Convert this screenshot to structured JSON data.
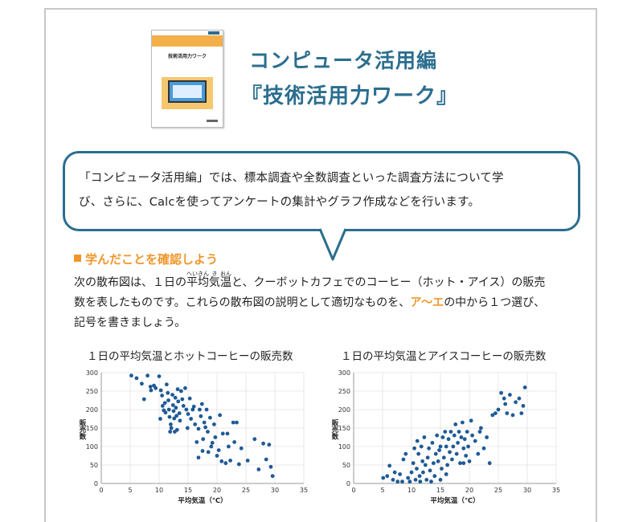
{
  "header": {
    "book_cover_title": "技術活用力ワーク",
    "title_line1": "コンピュータ活用編",
    "title_line2": "『技術活用力ワーク』"
  },
  "bubble": {
    "line1": "「コンピュータ活用編」では、標本調査や全数調査といった調査方法について学",
    "line2": "び、さらに、Calcを使ってアンケートの集計やグラフ作成などを行います。"
  },
  "section": {
    "label": "学んだことを確認しよう"
  },
  "question": {
    "p1a": "次の散布図は、１日の",
    "ruby_word": [
      {
        "base": "平",
        "rt": "へい"
      },
      {
        "base": "均",
        "rt": "きん"
      },
      {
        "base": "気",
        "rt": "き"
      },
      {
        "base": "温",
        "rt": "おん"
      }
    ],
    "p1b": "と、クーボットカフェでのコーヒー（ホット・アイス）の販売",
    "p2a": "数を表したものです。これらの散布図の説明として適切なものを、",
    "choices": "ア～エ",
    "p2b": "の中から１つ選び、",
    "p3": "記号を書きましょう。"
  },
  "colors": {
    "accent": "#2b6e8f",
    "orange": "#f0962a",
    "point": "#1f5a96"
  },
  "chart_data": [
    {
      "type": "scatter",
      "title": "１日の平均気温とホットコーヒーの販売数",
      "xlabel": "平均気温（℃）",
      "ylabel": "販売数",
      "xlim": [
        0,
        35
      ],
      "ylim": [
        0,
        300
      ],
      "xticks": [
        0,
        5,
        10,
        15,
        20,
        25,
        30,
        35
      ],
      "yticks": [
        0,
        50,
        100,
        150,
        200,
        250,
        300
      ],
      "grid": true,
      "points": [
        [
          5.2,
          292
        ],
        [
          6.1,
          285
        ],
        [
          7.0,
          270
        ],
        [
          7.4,
          228
        ],
        [
          8.0,
          292
        ],
        [
          8.5,
          262
        ],
        [
          8.6,
          252
        ],
        [
          9.1,
          265
        ],
        [
          9.4,
          258
        ],
        [
          10.0,
          290
        ],
        [
          10.3,
          252
        ],
        [
          10.5,
          238
        ],
        [
          10.6,
          210
        ],
        [
          10.8,
          198
        ],
        [
          11.0,
          218
        ],
        [
          11.1,
          192
        ],
        [
          11.3,
          268
        ],
        [
          11.5,
          245
        ],
        [
          11.6,
          225
        ],
        [
          11.7,
          200
        ],
        [
          11.8,
          180
        ],
        [
          12.0,
          160
        ],
        [
          12.1,
          150
        ],
        [
          12.3,
          240
        ],
        [
          12.4,
          212
        ],
        [
          12.5,
          196
        ],
        [
          12.6,
          176
        ],
        [
          12.7,
          140
        ],
        [
          12.8,
          232
        ],
        [
          12.9,
          205
        ],
        [
          13.0,
          183
        ],
        [
          13.2,
          255
        ],
        [
          13.3,
          222
        ],
        [
          13.5,
          190
        ],
        [
          13.6,
          170
        ],
        [
          13.8,
          250
        ],
        [
          14.0,
          228
        ],
        [
          14.2,
          210
        ],
        [
          14.5,
          258
        ],
        [
          14.7,
          200
        ],
        [
          15.0,
          188
        ],
        [
          15.3,
          230
        ],
        [
          15.5,
          175
        ],
        [
          15.8,
          200
        ],
        [
          16.0,
          208
        ],
        [
          16.2,
          160
        ],
        [
          16.5,
          112
        ],
        [
          16.8,
          148
        ],
        [
          17.0,
          200
        ],
        [
          17.2,
          182
        ],
        [
          17.4,
          215
        ],
        [
          17.6,
          120
        ],
        [
          17.8,
          165
        ],
        [
          18.0,
          152
        ],
        [
          18.2,
          200
        ],
        [
          18.4,
          140
        ],
        [
          18.5,
          85
        ],
        [
          18.8,
          178
        ],
        [
          19.0,
          100
        ],
        [
          19.2,
          110
        ],
        [
          19.5,
          160
        ],
        [
          19.7,
          125
        ],
        [
          20.0,
          75
        ],
        [
          20.3,
          90
        ],
        [
          20.5,
          185
        ],
        [
          21.0,
          135
        ],
        [
          21.5,
          55
        ],
        [
          21.8,
          135
        ],
        [
          22.0,
          100
        ],
        [
          22.3,
          62
        ],
        [
          22.8,
          165
        ],
        [
          23.0,
          112
        ],
        [
          23.4,
          165
        ],
        [
          23.8,
          52
        ],
        [
          24.2,
          95
        ],
        [
          25.3,
          62
        ],
        [
          26.5,
          120
        ],
        [
          27.2,
          38
        ],
        [
          28.0,
          108
        ],
        [
          28.5,
          65
        ],
        [
          29.0,
          105
        ],
        [
          29.3,
          45
        ],
        [
          29.6,
          20
        ],
        [
          16.8,
          70
        ],
        [
          17.5,
          88
        ],
        [
          20.8,
          60
        ],
        [
          14.9,
          150
        ],
        [
          13.1,
          145
        ],
        [
          11.9,
          140
        ],
        [
          10.2,
          175
        ]
      ]
    },
    {
      "type": "scatter",
      "title": "１日の平均気温とアイスコーヒーの販売数",
      "xlabel": "平均気温（℃）",
      "ylabel": "販売数",
      "xlim": [
        0,
        35
      ],
      "ylim": [
        0,
        300
      ],
      "xticks": [
        0,
        5,
        10,
        15,
        20,
        25,
        30,
        35
      ],
      "yticks": [
        0,
        50,
        100,
        150,
        200,
        250,
        300
      ],
      "grid": true,
      "points": [
        [
          5.1,
          15
        ],
        [
          5.8,
          20
        ],
        [
          6.2,
          48
        ],
        [
          6.8,
          10
        ],
        [
          7.1,
          30
        ],
        [
          7.6,
          5
        ],
        [
          8.0,
          25
        ],
        [
          8.4,
          5
        ],
        [
          8.6,
          65
        ],
        [
          9.0,
          80
        ],
        [
          9.4,
          15
        ],
        [
          9.7,
          5
        ],
        [
          10.0,
          30
        ],
        [
          10.3,
          55
        ],
        [
          10.5,
          95
        ],
        [
          10.7,
          10
        ],
        [
          10.9,
          40
        ],
        [
          11.0,
          115
        ],
        [
          11.2,
          80
        ],
        [
          11.4,
          20
        ],
        [
          11.5,
          5
        ],
        [
          11.7,
          100
        ],
        [
          11.9,
          60
        ],
        [
          12.0,
          30
        ],
        [
          12.2,
          125
        ],
        [
          12.4,
          50
        ],
        [
          12.6,
          10
        ],
        [
          12.8,
          70
        ],
        [
          13.0,
          95
        ],
        [
          13.2,
          35
        ],
        [
          13.4,
          5
        ],
        [
          13.6,
          110
        ],
        [
          13.8,
          55
        ],
        [
          14.0,
          20
        ],
        [
          14.2,
          80
        ],
        [
          14.4,
          130
        ],
        [
          14.6,
          60
        ],
        [
          14.8,
          90
        ],
        [
          15.0,
          100
        ],
        [
          15.2,
          40
        ],
        [
          15.4,
          125
        ],
        [
          15.6,
          70
        ],
        [
          15.8,
          140
        ],
        [
          16.0,
          100
        ],
        [
          16.2,
          50
        ],
        [
          16.4,
          120
        ],
        [
          16.6,
          85
        ],
        [
          16.8,
          140
        ],
        [
          17.0,
          65
        ],
        [
          17.2,
          100
        ],
        [
          17.4,
          130
        ],
        [
          17.6,
          160
        ],
        [
          17.8,
          80
        ],
        [
          18.0,
          110
        ],
        [
          18.2,
          140
        ],
        [
          18.4,
          55
        ],
        [
          18.6,
          125
        ],
        [
          18.8,
          165
        ],
        [
          19.0,
          95
        ],
        [
          19.2,
          120
        ],
        [
          19.4,
          75
        ],
        [
          19.6,
          140
        ],
        [
          19.8,
          100
        ],
        [
          20.0,
          60
        ],
        [
          20.5,
          130
        ],
        [
          21.0,
          115
        ],
        [
          21.5,
          80
        ],
        [
          22.0,
          150
        ],
        [
          22.5,
          95
        ],
        [
          23.0,
          125
        ],
        [
          23.5,
          55
        ],
        [
          24.0,
          185
        ],
        [
          24.5,
          190
        ],
        [
          25.0,
          200
        ],
        [
          25.5,
          245
        ],
        [
          26.0,
          230
        ],
        [
          26.5,
          190
        ],
        [
          27.0,
          240
        ],
        [
          27.5,
          185
        ],
        [
          28.0,
          220
        ],
        [
          29.0,
          190
        ],
        [
          29.3,
          210
        ],
        [
          29.6,
          260
        ],
        [
          28.6,
          230
        ],
        [
          26.2,
          215
        ],
        [
          20.3,
          170
        ],
        [
          21.8,
          140
        ],
        [
          19.0,
          55
        ],
        [
          16.0,
          25
        ],
        [
          15.0,
          10
        ]
      ]
    }
  ]
}
